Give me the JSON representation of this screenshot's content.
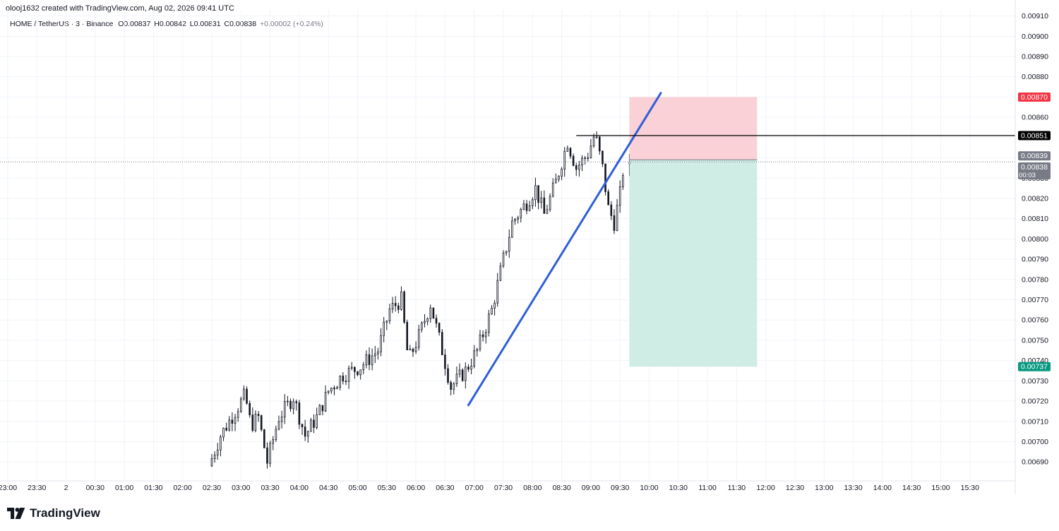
{
  "header": {
    "credit": "olooj1632 created with TradingView.com, Aug 02, 2026 09:41 UTC",
    "symbol": "HOME / TetherUS · 3 · Binance",
    "o_label": "O",
    "o_value": "0.00837",
    "h_label": "H",
    "h_value": "0.00842",
    "l_label": "L",
    "l_value": "0.00831",
    "c_label": "C",
    "c_value": "0.00838",
    "change": "+0.00002 (+0.24%)"
  },
  "brand": {
    "name": "TradingView"
  },
  "colors": {
    "up": "#131722",
    "down": "#131722",
    "trendline": "#2f5fd8",
    "stop_zone": "#f9d1d6",
    "target_zone": "#cfece5",
    "stop_tag": "#f23645",
    "target_tag": "#089981",
    "level_tag": "#000000",
    "price_tag": "#787b86",
    "grid": "#f0f3fa"
  },
  "chart_data": {
    "type": "candlestick",
    "y_ticks": [
      "0.00690",
      "0.00700",
      "0.00710",
      "0.00720",
      "0.00730",
      "0.00740",
      "0.00750",
      "0.00760",
      "0.00770",
      "0.00780",
      "0.00790",
      "0.00800",
      "0.00810",
      "0.00820",
      "0.00830",
      "0.00840",
      "0.00850",
      "0.00860",
      "0.00870",
      "0.00880",
      "0.00890",
      "0.00900",
      "0.00910"
    ],
    "ylim": [
      0.00681,
      0.00913
    ],
    "x_ticks": [
      {
        "label": "23:00",
        "t": -3.5
      },
      {
        "label": "23:30",
        "t": -3.0
      },
      {
        "label": "2",
        "t": -2.5
      },
      {
        "label": "00:30",
        "t": -2.0
      },
      {
        "label": "01:00",
        "t": -1.5
      },
      {
        "label": "01:30",
        "t": -1.0
      },
      {
        "label": "02:00",
        "t": -0.5
      },
      {
        "label": "02:30",
        "t": 0.0
      },
      {
        "label": "03:00",
        "t": 0.5
      },
      {
        "label": "03:30",
        "t": 1.0
      },
      {
        "label": "04:00",
        "t": 1.5
      },
      {
        "label": "04:30",
        "t": 2.0
      },
      {
        "label": "05:00",
        "t": 2.5
      },
      {
        "label": "05:30",
        "t": 3.0
      },
      {
        "label": "06:00",
        "t": 3.5
      },
      {
        "label": "06:30",
        "t": 4.0
      },
      {
        "label": "07:00",
        "t": 4.5
      },
      {
        "label": "07:30",
        "t": 5.0
      },
      {
        "label": "08:00",
        "t": 5.5
      },
      {
        "label": "08:30",
        "t": 6.0
      },
      {
        "label": "09:00",
        "t": 6.5
      },
      {
        "label": "09:30",
        "t": 7.0
      },
      {
        "label": "10:00",
        "t": 7.5
      },
      {
        "label": "10:30",
        "t": 8.0
      },
      {
        "label": "11:00",
        "t": 8.5
      },
      {
        "label": "11:30",
        "t": 9.0
      },
      {
        "label": "12:00",
        "t": 9.5
      },
      {
        "label": "12:30",
        "t": 10.0
      },
      {
        "label": "13:00",
        "t": 10.5
      },
      {
        "label": "13:30",
        "t": 11.0
      },
      {
        "label": "14:00",
        "t": 11.5
      },
      {
        "label": "14:30",
        "t": 12.0
      },
      {
        "label": "15:00",
        "t": 12.5
      },
      {
        "label": "15:30",
        "t": 13.0
      }
    ],
    "time_unit": "hours since 02:30",
    "price_path": [
      [
        0.0,
        0.00688
      ],
      [
        0.2,
        0.00703
      ],
      [
        0.45,
        0.00715
      ],
      [
        0.62,
        0.00723
      ],
      [
        0.72,
        0.00708
      ],
      [
        0.85,
        0.00712
      ],
      [
        1.0,
        0.0069
      ],
      [
        1.2,
        0.00712
      ],
      [
        1.45,
        0.00722
      ],
      [
        1.65,
        0.00703
      ],
      [
        1.85,
        0.00712
      ],
      [
        2.05,
        0.00725
      ],
      [
        2.3,
        0.00733
      ],
      [
        2.6,
        0.00737
      ],
      [
        2.9,
        0.00745
      ],
      [
        3.1,
        0.00765
      ],
      [
        3.3,
        0.0077
      ],
      [
        3.42,
        0.0074
      ],
      [
        3.6,
        0.00752
      ],
      [
        3.8,
        0.00768
      ],
      [
        4.0,
        0.00745
      ],
      [
        4.15,
        0.00727
      ],
      [
        4.4,
        0.00735
      ],
      [
        4.6,
        0.00745
      ],
      [
        4.85,
        0.00765
      ],
      [
        5.05,
        0.0079
      ],
      [
        5.2,
        0.00808
      ],
      [
        5.45,
        0.00818
      ],
      [
        5.6,
        0.00825
      ],
      [
        5.75,
        0.00812
      ],
      [
        5.95,
        0.00828
      ],
      [
        6.15,
        0.00848
      ],
      [
        6.3,
        0.00835
      ],
      [
        6.5,
        0.00842
      ],
      [
        6.62,
        0.00852
      ],
      [
        6.75,
        0.00835
      ],
      [
        6.85,
        0.00815
      ],
      [
        6.95,
        0.00808
      ],
      [
        7.05,
        0.00822
      ],
      [
        7.12,
        0.00838
      ]
    ],
    "last_candle": {
      "o": 0.00837,
      "h": 0.00842,
      "l": 0.00831,
      "c": 0.00838
    },
    "trendline": {
      "x1": 4.4,
      "y1": 0.00718,
      "x2": 7.7,
      "y2": 0.00872
    },
    "horizontal_level": {
      "x_start": 6.25,
      "price": 0.00851,
      "label": "0.00851"
    },
    "position": {
      "type": "short",
      "x_start": 7.16,
      "x_end": 9.35,
      "entry": 0.00839,
      "entry_label": "0.00839",
      "stop": 0.0087,
      "stop_label": "0.00870",
      "target": 0.00737,
      "target_label": "0.00737"
    },
    "current_price": {
      "price": 0.00838,
      "label": "0.00838",
      "countdown": "00:03"
    },
    "grid": true
  }
}
